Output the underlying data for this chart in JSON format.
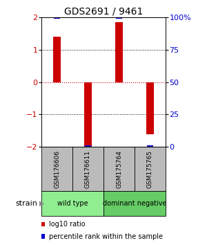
{
  "title": "GDS2691 / 9461",
  "samples": [
    "GSM176606",
    "GSM176611",
    "GSM175764",
    "GSM175765"
  ],
  "log10_ratios": [
    1.4,
    -2.05,
    1.85,
    -1.6
  ],
  "percentile_ranks": [
    100,
    0,
    100,
    0
  ],
  "groups": [
    {
      "name": "wild type",
      "samples": [
        0,
        1
      ],
      "color": "#90EE90"
    },
    {
      "name": "dominant negative",
      "samples": [
        2,
        3
      ],
      "color": "#66CC66"
    }
  ],
  "bar_color": "#CC0000",
  "percentile_color": "#0000CC",
  "ylim": [
    -2,
    2
  ],
  "yticks_left": [
    -2,
    -1,
    0,
    1,
    2
  ],
  "yticks_right_vals": [
    0,
    25,
    50,
    75,
    100
  ],
  "yticks_right_labels": [
    "0",
    "25",
    "50",
    "75",
    "100%"
  ],
  "ylabel_left_color": "#CC0000",
  "ylabel_right_color": "#0000CC",
  "zero_line_color": "#CC0000",
  "dotted_line_color": "black",
  "bg_color": "white",
  "strain_label": "strain",
  "legend_red_label": "log10 ratio",
  "legend_blue_label": "percentile rank within the sample",
  "sample_box_color": "#BBBBBB",
  "title_fontsize": 10,
  "tick_fontsize": 8,
  "bar_width": 0.25
}
